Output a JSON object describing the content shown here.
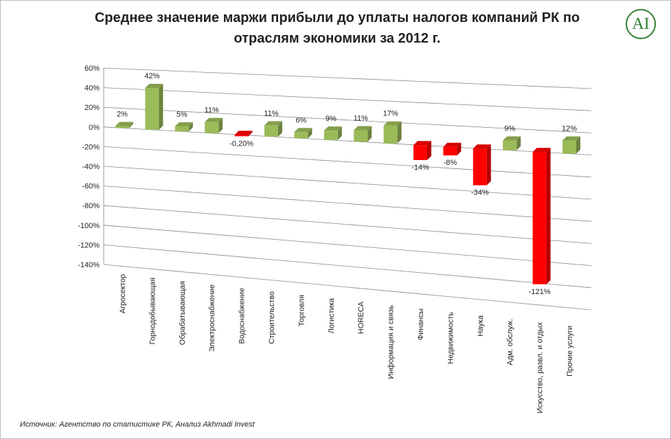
{
  "chart_data": {
    "type": "bar3d",
    "title": "Среднее значение маржи прибыли до уплаты налогов компаний РК по отраслям экономики за 2012 г.",
    "logo": "AI",
    "source": "Источник: Агентство по статистике РК, Анализ Akhmadi Invest",
    "categories": [
      "Агросектор",
      "Горнодобывающая",
      "Обрабатывающая",
      "Электроснабжение",
      "Водоснабжение",
      "Строительство",
      "Торговля",
      "Логистика",
      "HORECA",
      "Информация и связь",
      "Финансы",
      "Недвижимость",
      "Наука",
      "Адм. обслуж.",
      "Искусство, развл. и отдых",
      "Прочие услуги"
    ],
    "values": [
      2,
      42,
      5,
      11,
      -0.2,
      11,
      6,
      9,
      11,
      17,
      -14,
      -8,
      -34,
      9,
      -121,
      12
    ],
    "value_labels": [
      "2%",
      "42%",
      "5%",
      "11%",
      "-0,20%",
      "11%",
      "6%",
      "9%",
      "11%",
      "17%",
      "-14%",
      "-8%",
      "-34%",
      "9%",
      "-121%",
      "12%"
    ],
    "color_positive": "#9bbb59",
    "color_negative": "#ff0000",
    "ylim": [
      -140,
      60
    ],
    "yticks": [
      {
        "value": -140,
        "label": "-140%"
      },
      {
        "value": -120,
        "label": "-120%"
      },
      {
        "value": -100,
        "label": "-100%"
      },
      {
        "value": -80,
        "label": "-80%"
      },
      {
        "value": -60,
        "label": "-60%"
      },
      {
        "value": -40,
        "label": "-40%"
      },
      {
        "value": -20,
        "label": "-20%"
      },
      {
        "value": 0,
        "label": "0%"
      },
      {
        "value": 20,
        "label": "20%"
      },
      {
        "value": 40,
        "label": "40%"
      },
      {
        "value": 60,
        "label": "60%"
      }
    ],
    "grid": true
  }
}
